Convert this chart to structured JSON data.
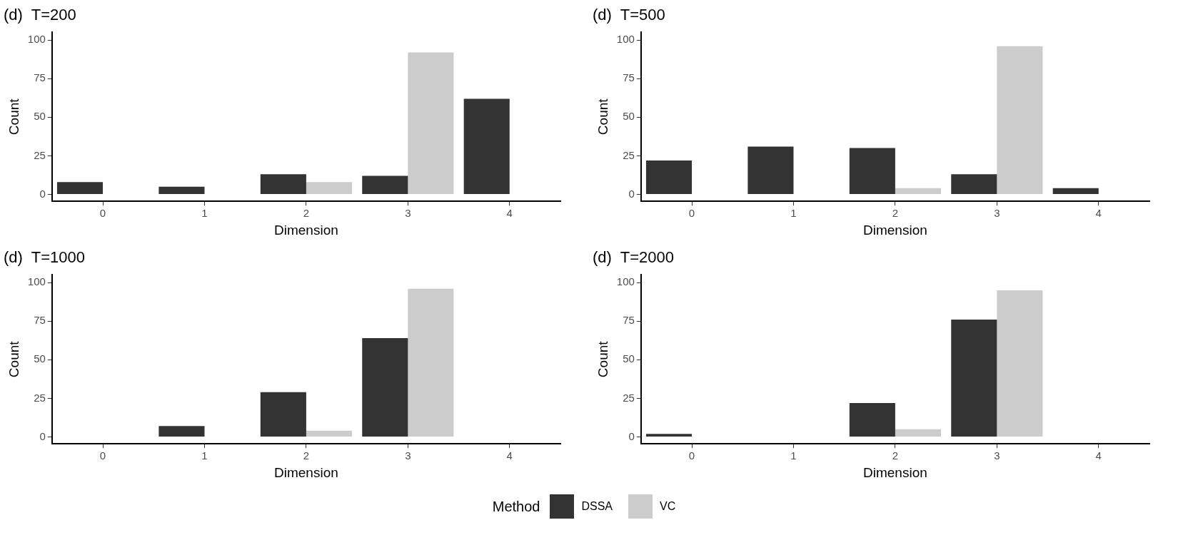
{
  "chart_data": [
    {
      "type": "bar",
      "title": "(d)  T=200",
      "xlabel": "Dimension",
      "ylabel": "Count",
      "categories": [
        "0",
        "1",
        "2",
        "3",
        "4"
      ],
      "legend": "bottom",
      "legend_title": "Method",
      "grid": false,
      "ylim": [
        -4.5,
        105
      ],
      "yticks": [
        0,
        25,
        50,
        75,
        100
      ],
      "series": [
        {
          "name": "DSSA",
          "color": "#333333",
          "values": [
            8,
            5,
            13,
            12,
            62
          ]
        },
        {
          "name": "VC",
          "color": "#cccccc",
          "values": [
            0,
            0,
            8,
            92,
            0
          ]
        }
      ]
    },
    {
      "type": "bar",
      "title": "(d)  T=500",
      "xlabel": "Dimension",
      "ylabel": "Count",
      "categories": [
        "0",
        "1",
        "2",
        "3",
        "4"
      ],
      "grid": false,
      "ylim": [
        -4.5,
        105
      ],
      "yticks": [
        0,
        25,
        50,
        75,
        100
      ],
      "series": [
        {
          "color": "#333333",
          "values": [
            22,
            31,
            30,
            13,
            4
          ]
        },
        {
          "color": "#cccccc",
          "values": [
            0,
            0,
            4,
            96,
            0
          ]
        }
      ]
    },
    {
      "type": "bar",
      "title": "(d)  T=1000",
      "xlabel": "Dimension",
      "ylabel": "Count",
      "categories": [
        "0",
        "1",
        "2",
        "3",
        "4"
      ],
      "grid": false,
      "ylim": [
        -4.5,
        105
      ],
      "yticks": [
        0,
        25,
        50,
        75,
        100
      ],
      "series": [
        {
          "color": "#333333",
          "values": [
            0,
            7,
            29,
            64,
            0
          ]
        },
        {
          "color": "#cccccc",
          "values": [
            0,
            0,
            4,
            96,
            0
          ]
        }
      ]
    },
    {
      "type": "bar",
      "title": "(d)  T=2000",
      "xlabel": "Dimension",
      "ylabel": "Count",
      "categories": [
        "0",
        "1",
        "2",
        "3",
        "4"
      ],
      "grid": false,
      "ylim": [
        -4.5,
        105
      ],
      "yticks": [
        0,
        25,
        50,
        75,
        100
      ],
      "series": [
        {
          "color": "#333333",
          "values": [
            2,
            0,
            22,
            76,
            0
          ]
        },
        {
          "color": "#cccccc",
          "values": [
            0,
            0,
            5,
            95,
            0
          ]
        }
      ]
    }
  ]
}
